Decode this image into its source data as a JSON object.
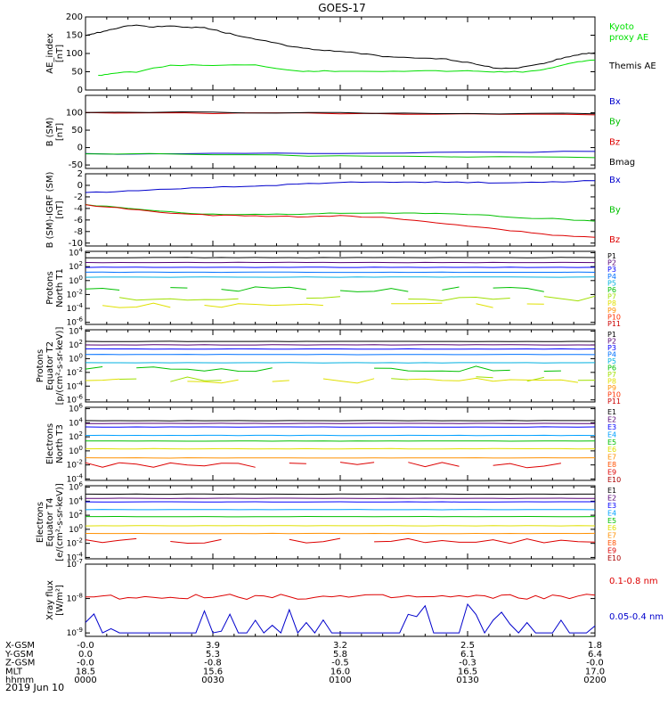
{
  "title": "GOES-17",
  "date_label": "2019 Jun 10",
  "colors": {
    "black": "#000000",
    "blue": "#0000cc",
    "green": "#00c000",
    "red": "#dd0000",
    "bright_green": "#00e000"
  },
  "chart_data": [
    {
      "type": "line",
      "panel": 1,
      "ylabel": "AE_index\n[nT]",
      "ylim": [
        0,
        200
      ],
      "yticks": [
        "0",
        "50",
        "100",
        "150",
        "200"
      ],
      "x_range_minutes": [
        0,
        120
      ],
      "series": [
        {
          "name": "Kyoto\nproxy AE",
          "color": "#00e000",
          "x": [
            0,
            3,
            6,
            12,
            20,
            30,
            40,
            50,
            55,
            60,
            70,
            80,
            90,
            95,
            100,
            104,
            108,
            112,
            116,
            120
          ],
          "y": [
            null,
            40,
            45,
            50,
            68,
            68,
            68,
            52,
            52,
            52,
            52,
            52,
            52,
            50,
            50,
            50,
            55,
            68,
            78,
            82
          ]
        },
        {
          "name": "Themis AE",
          "color": "#000000",
          "x": [
            0,
            2,
            5,
            8,
            12,
            16,
            20,
            24,
            28,
            32,
            36,
            40,
            45,
            50,
            55,
            60,
            65,
            70,
            75,
            80,
            85,
            90,
            94,
            98,
            102,
            106,
            110,
            114,
            118,
            120
          ],
          "y": [
            150,
            155,
            162,
            172,
            178,
            172,
            176,
            172,
            170,
            160,
            148,
            140,
            128,
            116,
            110,
            105,
            100,
            92,
            90,
            88,
            84,
            75,
            65,
            58,
            60,
            68,
            80,
            92,
            100,
            102
          ]
        }
      ]
    },
    {
      "type": "line",
      "panel": 2,
      "ylabel": "B (SM)\n[nT]",
      "ylim": [
        -60,
        150
      ],
      "yticks": [
        "-50",
        "0",
        "50",
        "100"
      ],
      "series": [
        {
          "name": "Bx",
          "color": "#0000cc",
          "x": [
            0,
            30,
            60,
            90,
            120
          ],
          "y": [
            -18,
            -17,
            -16,
            -14,
            -11
          ]
        },
        {
          "name": "By",
          "color": "#00c000",
          "x": [
            0,
            30,
            60,
            90,
            120
          ],
          "y": [
            -17,
            -20,
            -24,
            -27,
            -29
          ]
        },
        {
          "name": "Bz",
          "color": "#dd0000",
          "x": [
            0,
            30,
            60,
            90,
            120
          ],
          "y": [
            100,
            99,
            98,
            96,
            94
          ]
        },
        {
          "name": "Bmag",
          "color": "#000000",
          "x": [
            0,
            30,
            60,
            90,
            120
          ],
          "y": [
            102,
            101,
            100,
            98,
            97
          ]
        }
      ]
    },
    {
      "type": "line",
      "panel": 3,
      "ylabel": "B (SM)-IGRF (SM)\n[nT]",
      "ylim": [
        -10.5,
        2
      ],
      "yticks": [
        "-10",
        "-8",
        "-6",
        "-4",
        "-2",
        "0",
        "2"
      ],
      "series": [
        {
          "name": "Bx",
          "color": "#0000cc",
          "x": [
            0,
            10,
            20,
            30,
            40,
            50,
            60,
            70,
            80,
            90,
            100,
            110,
            120
          ],
          "y": [
            -1.3,
            -1.0,
            -0.6,
            -0.3,
            -0.1,
            0.2,
            0.5,
            0.6,
            0.6,
            0.5,
            0.4,
            0.6,
            0.8
          ]
        },
        {
          "name": "By",
          "color": "#00c000",
          "x": [
            0,
            10,
            20,
            30,
            40,
            50,
            60,
            70,
            80,
            90,
            100,
            110,
            120
          ],
          "y": [
            -3.3,
            -4.0,
            -4.6,
            -5.0,
            -5.0,
            -5.0,
            -4.8,
            -4.8,
            -4.9,
            -5.0,
            -5.5,
            -5.8,
            -6.2
          ]
        },
        {
          "name": "Bz",
          "color": "#dd0000",
          "x": [
            0,
            10,
            20,
            30,
            40,
            50,
            60,
            70,
            80,
            90,
            100,
            110,
            120
          ],
          "y": [
            -3.4,
            -4.1,
            -4.8,
            -5.2,
            -5.3,
            -5.4,
            -5.3,
            -5.6,
            -6.2,
            -7.0,
            -7.8,
            -8.6,
            -9.0
          ]
        }
      ]
    },
    {
      "type": "line",
      "panel": 4,
      "ylabel": "Protons\nNorth T1",
      "scale": "log",
      "ylim_exp": [
        -6.3,
        4.2
      ],
      "yticks": [
        "10^-6",
        "10^-4",
        "10^-2",
        "10^0",
        "10^2",
        "10^4"
      ],
      "series": [
        {
          "name": "P1",
          "color": "#000000",
          "log10": 3.3
        },
        {
          "name": "P2",
          "color": "#550077",
          "log10": 2.6
        },
        {
          "name": "P3",
          "color": "#0000ff",
          "log10": 1.9
        },
        {
          "name": "P4",
          "color": "#0070ff",
          "log10": 1.2
        },
        {
          "name": "P5",
          "color": "#00b0e0",
          "log10": 0.5
        },
        {
          "name": "P6",
          "color": "#00c000",
          "log10": -1.3
        },
        {
          "name": "P7",
          "color": "#a0e000",
          "log10": -2.6
        },
        {
          "name": "P8",
          "color": "#e0e000",
          "log10": -3.5
        },
        {
          "name": "P9",
          "color": "#ff9000",
          "log10": null
        },
        {
          "name": "P10",
          "color": "#ff3000",
          "log10": null
        },
        {
          "name": "P11",
          "color": "#cc0000",
          "log10": null
        }
      ]
    },
    {
      "type": "line",
      "panel": 5,
      "ylabel": "Protons\nEquator T2\n[p/(cm²-s-sr-keV)]",
      "scale": "log",
      "ylim_exp": [
        -6.3,
        4.2
      ],
      "yticks": [
        "10^-6",
        "10^-4",
        "10^-2",
        "10^0",
        "10^2",
        "10^4"
      ],
      "series": [
        {
          "name": "P1",
          "color": "#000000",
          "log10": 2.5
        },
        {
          "name": "P2",
          "color": "#550077",
          "log10": 2.0
        },
        {
          "name": "P3",
          "color": "#0000ff",
          "log10": 1.4
        },
        {
          "name": "P4",
          "color": "#0070ff",
          "log10": 0.6
        },
        {
          "name": "P5",
          "color": "#00b0e0",
          "log10": -0.6
        },
        {
          "name": "P6",
          "color": "#00c000",
          "log10": -1.5
        },
        {
          "name": "P7",
          "color": "#a0e000",
          "log10": -3.0
        },
        {
          "name": "P8",
          "color": "#e0e000",
          "log10": -3.2
        },
        {
          "name": "P9",
          "color": "#ff9000",
          "log10": null
        },
        {
          "name": "P10",
          "color": "#ff3000",
          "log10": null
        },
        {
          "name": "P11",
          "color": "#cc0000",
          "log10": null
        }
      ]
    },
    {
      "type": "line",
      "panel": 6,
      "ylabel": "Electrons\nNorth T3",
      "scale": "log",
      "ylim_exp": [
        -4.2,
        6.2
      ],
      "yticks": [
        "10^-4",
        "10^-2",
        "10^0",
        "10^2",
        "10^4",
        "10^6"
      ],
      "series": [
        {
          "name": "E1",
          "color": "#000000",
          "log10": 4.3
        },
        {
          "name": "E2",
          "color": "#550077",
          "log10": 3.9
        },
        {
          "name": "E3",
          "color": "#0000ff",
          "log10": 3.4
        },
        {
          "name": "E4",
          "color": "#00a0ff",
          "log10": 2.2
        },
        {
          "name": "E5",
          "color": "#00c000",
          "log10": 1.4
        },
        {
          "name": "E6",
          "color": "#e0e000",
          "log10": 0.3
        },
        {
          "name": "E7",
          "color": "#ff9000",
          "log10": -1.0
        },
        {
          "name": "E8",
          "color": "#ff5000",
          "log10": null
        },
        {
          "name": "E9",
          "color": "#dd0000",
          "log10": -2.0
        },
        {
          "name": "E10",
          "color": "#aa0000",
          "log10": null
        }
      ]
    },
    {
      "type": "line",
      "panel": 7,
      "ylabel": "Electrons\nEquator T4\n[e/(cm²-s-sr-keV)]",
      "scale": "log",
      "ylim_exp": [
        -4.2,
        6.2
      ],
      "yticks": [
        "10^-4",
        "10^-2",
        "10^0",
        "10^2",
        "10^4",
        "10^6"
      ],
      "series": [
        {
          "name": "E1",
          "color": "#000000",
          "log10": 5.0
        },
        {
          "name": "E2",
          "color": "#550077",
          "log10": 4.4
        },
        {
          "name": "E3",
          "color": "#0000ff",
          "log10": 3.9
        },
        {
          "name": "E4",
          "color": "#00a0ff",
          "log10": 2.8
        },
        {
          "name": "E5",
          "color": "#00c000",
          "log10": 1.8
        },
        {
          "name": "E6",
          "color": "#e0e000",
          "log10": 0.5
        },
        {
          "name": "E7",
          "color": "#ff9000",
          "log10": -0.6
        },
        {
          "name": "E8",
          "color": "#ff5000",
          "log10": null
        },
        {
          "name": "E9",
          "color": "#dd0000",
          "log10": -1.7
        },
        {
          "name": "E10",
          "color": "#aa0000",
          "log10": null
        }
      ]
    },
    {
      "type": "line",
      "panel": 8,
      "ylabel": "Xray flux\n[W/m²]",
      "scale": "log",
      "ylim_exp": [
        -9.1,
        -7
      ],
      "yticks": [
        "10^-9",
        "10^-8",
        "10^-7"
      ],
      "series": [
        {
          "name": "0.1-0.8 nm",
          "color": "#dd0000",
          "log10_mean": -7.95
        },
        {
          "name": "0.05-0.4 nm",
          "color": "#0000cc",
          "log10_mean": -9.0
        }
      ]
    }
  ],
  "ephemeris": {
    "labels": [
      "X-GSM",
      "Y-GSM",
      "Z-GSM",
      "MLT",
      "hhmm"
    ],
    "columns": [
      {
        "x_min": 0,
        "values": [
          "-0.0",
          "0.0",
          "-0.0",
          "18.5",
          "0000"
        ]
      },
      {
        "x_min": 30,
        "values": [
          "3.9",
          "5.3",
          "-0.8",
          "15.6",
          "0030"
        ]
      },
      {
        "x_min": 60,
        "values": [
          "3.2",
          "5.8",
          "-0.5",
          "16.0",
          "0100"
        ]
      },
      {
        "x_min": 90,
        "values": [
          "2.5",
          "6.1",
          "-0.3",
          "16.5",
          "0130"
        ]
      },
      {
        "x_min": 120,
        "values": [
          "1.8",
          "6.4",
          "-0.0",
          "17.0",
          "0200"
        ]
      }
    ]
  }
}
